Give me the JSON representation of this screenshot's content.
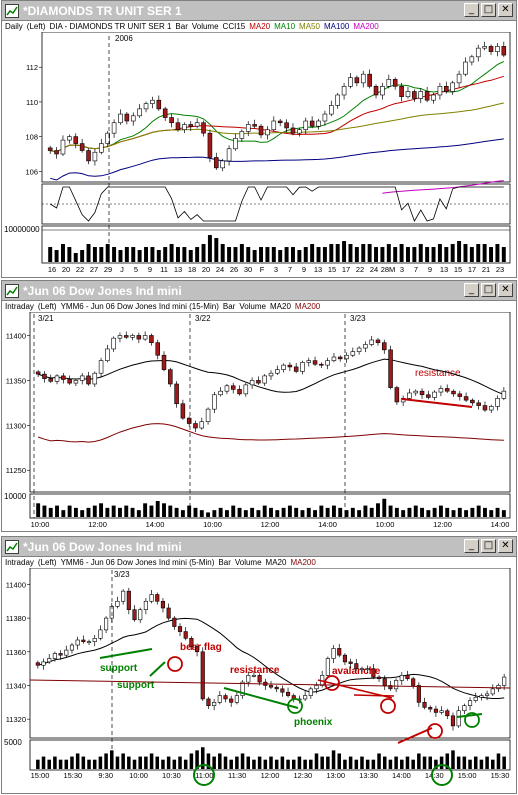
{
  "colors": {
    "up": "#ffffff",
    "down": "#a01818",
    "ma20": "#c00000",
    "ma10": "#008000",
    "ma50": "#808000",
    "ma100": "#000080",
    "ma200": "#c000c0",
    "annot_red": "#c00000",
    "annot_green": "#008000"
  },
  "windows": [
    {
      "title": "*DIAMONDS TR UNIT SER 1",
      "info": {
        "period": "Daily",
        "axis": "(Left)",
        "desc": "DIA - DIAMONDS TR UNIT SER 1",
        "type": "Bar",
        "vol": "Volume",
        "cci": "CCI15",
        "ma": [
          "MA20",
          "MA10",
          "MA50",
          "MA100",
          "MA200"
        ]
      },
      "year_label": "2006",
      "price_ticks": [
        "112",
        "110",
        "108",
        "106"
      ],
      "volume_tick": "10000000",
      "x_labels": [
        "16",
        "20",
        "22",
        "27",
        "29",
        "J",
        "5",
        "9",
        "11",
        "13",
        "18",
        "20",
        "24",
        "26",
        "30",
        "F",
        "3",
        "7",
        "9",
        "13",
        "15",
        "17",
        "22",
        "24",
        "28M",
        "3",
        "7",
        "9",
        "13",
        "15",
        "17",
        "21",
        "23"
      ]
    },
    {
      "title": "*Jun 06  Dow Jones Ind mini",
      "info": {
        "period": "Intraday",
        "axis": "(Left)",
        "desc": "YMM6 - Jun 06  Dow Jones Ind mini (15-Min)",
        "type": "Bar",
        "vol": "Volume",
        "ma": [
          "MA20",
          "MA200"
        ]
      },
      "date_labels": [
        "3/21",
        "3/22",
        "3/23"
      ],
      "price_ticks": [
        "11400",
        "11350",
        "11300",
        "11250"
      ],
      "volume_tick": "10000",
      "x_labels": [
        "10:00",
        "12:00",
        "14:00",
        "10:00",
        "12:00",
        "14:00",
        "10:00",
        "12:00",
        "14:00"
      ],
      "annotations": [
        "resistance"
      ]
    },
    {
      "title": "*Jun 06  Dow Jones Ind mini",
      "info": {
        "period": "Intraday",
        "axis": "(Left)",
        "desc": "YMM6 - Jun 06  Dow Jones Ind mini (5-Min)",
        "type": "Bar",
        "vol": "Volume",
        "ma": [
          "MA20",
          "MA200"
        ]
      },
      "date_label": "3/23",
      "price_ticks": [
        "11400",
        "11380",
        "11360",
        "11340",
        "11320"
      ],
      "volume_tick": "5000",
      "x_labels": [
        "15:00",
        "15:30",
        "9:30",
        "10:00",
        "10:30",
        "11:00",
        "11:30",
        "12:00",
        "12:30",
        "13:00",
        "13:30",
        "14:00",
        "14:30",
        "15:00",
        "15:30"
      ],
      "annotations": [
        "support",
        "support",
        "bear flag",
        "resistance",
        "avalanche",
        "phoenix"
      ]
    }
  ],
  "chart_data": [
    {
      "type": "candlestick",
      "title": "DIA - DIAMONDS TR UNIT SER 1",
      "period": "Daily",
      "ylim": [
        105.5,
        113.8
      ],
      "close": [
        107.2,
        107.0,
        107.8,
        108.0,
        107.6,
        107.2,
        106.6,
        107.1,
        107.6,
        108.2,
        108.8,
        109.3,
        108.9,
        109.2,
        109.6,
        109.9,
        110.1,
        109.6,
        109.1,
        108.8,
        108.4,
        108.7,
        108.6,
        108.8,
        108.2,
        106.8,
        106.2,
        106.6,
        107.3,
        107.9,
        108.3,
        108.7,
        108.6,
        108.1,
        108.4,
        108.9,
        108.8,
        108.5,
        108.2,
        108.4,
        108.9,
        108.6,
        108.9,
        109.3,
        109.8,
        110.4,
        110.9,
        111.4,
        111.1,
        111.6,
        110.9,
        110.4,
        110.9,
        111.3,
        110.9,
        110.3,
        110.6,
        110.2,
        110.6,
        110.1,
        110.4,
        110.9,
        110.6,
        111.1,
        111.6,
        112.3,
        112.6,
        113.1,
        113.2,
        112.9,
        113.2,
        112.7
      ],
      "volume": [
        5,
        4,
        6,
        5,
        3,
        4,
        6,
        5,
        5,
        6,
        5,
        4,
        5,
        5,
        4,
        5,
        5,
        4,
        5,
        6,
        5,
        5,
        4,
        5,
        6,
        9,
        8,
        6,
        5,
        5,
        6,
        5,
        4,
        5,
        5,
        5,
        4,
        5,
        5,
        4,
        5,
        6,
        5,
        5,
        6,
        6,
        7,
        6,
        5,
        6,
        6,
        5,
        5,
        6,
        5,
        6,
        5,
        5,
        6,
        5,
        5,
        6,
        5,
        6,
        7,
        6,
        5,
        6,
        6,
        5,
        6,
        5
      ],
      "volume_max": 10000000,
      "indicators": [
        "CCI15",
        "MA20",
        "MA10",
        "MA50",
        "MA100",
        "MA200"
      ]
    },
    {
      "type": "candlestick",
      "title": "YMM6 - Jun 06 Dow Jones Ind mini (15-Min)",
      "period": "15-Min",
      "ylim": [
        11228,
        11415
      ],
      "close": [
        11357,
        11352,
        11349,
        11355,
        11351,
        11347,
        11350,
        11355,
        11346,
        11358,
        11372,
        11385,
        11397,
        11400,
        11398,
        11400,
        11396,
        11400,
        11392,
        11378,
        11362,
        11346,
        11324,
        11308,
        11302,
        11297,
        11304,
        11318,
        11334,
        11338,
        11344,
        11340,
        11335,
        11345,
        11350,
        11347,
        11355,
        11358,
        11362,
        11367,
        11365,
        11360,
        11370,
        11372,
        11368,
        11367,
        11372,
        11376,
        11374,
        11378,
        11382,
        11386,
        11390,
        11395,
        11392,
        11384,
        11342,
        11326,
        11330,
        11336,
        11338,
        11334,
        11331,
        11337,
        11341,
        11338,
        11335,
        11332,
        11328,
        11325,
        11322,
        11317,
        11321,
        11330,
        11338
      ],
      "volume": [
        6,
        5,
        4,
        5,
        3,
        5,
        4,
        3,
        4,
        5,
        6,
        4,
        5,
        4,
        5,
        4,
        3,
        6,
        5,
        7,
        6,
        5,
        4,
        3,
        5,
        4,
        3,
        2,
        3,
        4,
        3,
        5,
        4,
        3,
        4,
        3,
        5,
        4,
        3,
        4,
        5,
        4,
        3,
        4,
        3,
        5,
        4,
        5,
        4,
        3,
        4,
        3,
        5,
        4,
        6,
        8,
        5,
        4,
        3,
        4,
        5,
        4,
        3,
        4,
        5,
        4,
        3,
        4,
        3,
        4,
        5,
        4,
        3,
        4,
        3
      ],
      "volume_max": 10000,
      "indicators": [
        "MA20",
        "MA200"
      ]
    },
    {
      "type": "candlestick",
      "title": "YMM6 - Jun 06 Dow Jones Ind mini (5-Min)",
      "period": "5-Min",
      "ylim": [
        11310,
        11405
      ],
      "close": [
        11352,
        11354,
        11356,
        11359,
        11358,
        11361,
        11364,
        11367,
        11366,
        11366,
        11368,
        11373,
        11380,
        11387,
        11390,
        11396,
        11385,
        11379,
        11385,
        11390,
        11394,
        11390,
        11386,
        11380,
        11375,
        11372,
        11368,
        11363,
        11360,
        11332,
        11328,
        11330,
        11334,
        11332,
        11330,
        11334,
        11342,
        11346,
        11346,
        11342,
        11340,
        11339,
        11338,
        11336,
        11334,
        11332,
        11332,
        11334,
        11338,
        11340,
        11346,
        11356,
        11362,
        11358,
        11354,
        11353,
        11350,
        11350,
        11350,
        11345,
        11344,
        11340,
        11338,
        11343,
        11346,
        11344,
        11340,
        11330,
        11327,
        11326,
        11324,
        11325,
        11322,
        11316,
        11325,
        11328,
        11331,
        11333,
        11334,
        11335,
        11338,
        11340,
        11345
      ],
      "volume": [
        3,
        4,
        3,
        4,
        3,
        3,
        4,
        5,
        4,
        3,
        3,
        4,
        5,
        6,
        4,
        5,
        4,
        3,
        4,
        4,
        5,
        4,
        3,
        4,
        3,
        4,
        3,
        5,
        6,
        7,
        5,
        4,
        5,
        4,
        3,
        4,
        5,
        4,
        3,
        4,
        3,
        4,
        3,
        4,
        3,
        3,
        4,
        3,
        3,
        5,
        4,
        4,
        6,
        5,
        3,
        4,
        3,
        4,
        3,
        3,
        5,
        4,
        3,
        4,
        3,
        4,
        3,
        5,
        4,
        4,
        3,
        4,
        5,
        6,
        4,
        4,
        3,
        4,
        3,
        4,
        3,
        5,
        4
      ],
      "volume_max": 5000,
      "indicators": [
        "MA20",
        "MA200"
      ]
    }
  ]
}
